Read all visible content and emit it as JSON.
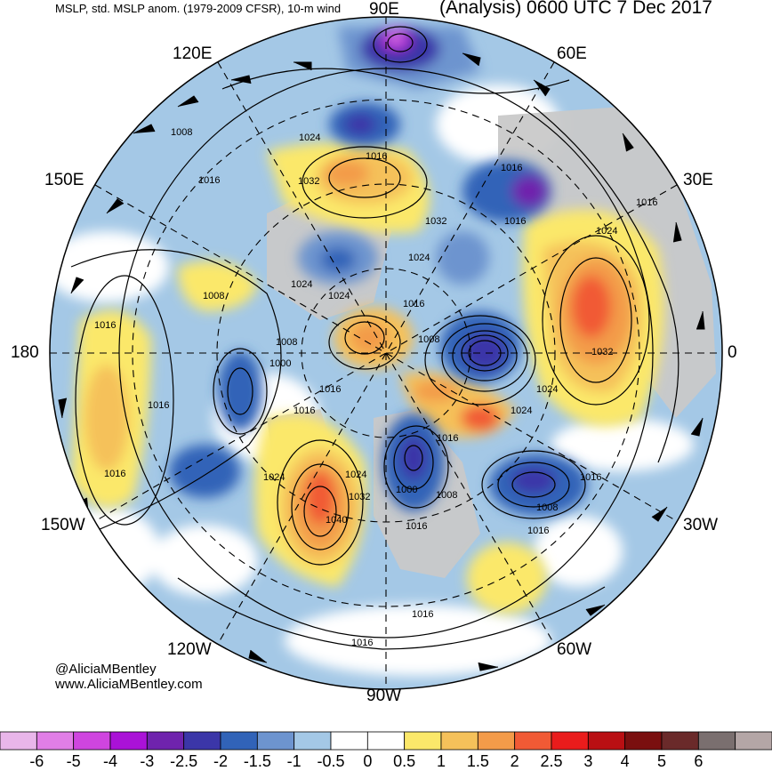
{
  "header": {
    "left_title": "MSLP, std. MSLP anom. (1979-2009 CFSR), 10-m wind",
    "right_title": "(Analysis) 0600 UTC 7 Dec 2017"
  },
  "longitude_labels": {
    "e90": "90E",
    "e60": "60E",
    "e30": "30E",
    "zero": "0",
    "w30": "30W",
    "w60": "60W",
    "w90": "90W",
    "w120": "120W",
    "w150": "150W",
    "deg180": "180",
    "e150": "150E",
    "e120": "120E"
  },
  "credit": {
    "handle": "@AliciaMBentley",
    "website": "www.AliciaMBentley.com"
  },
  "isobar_labels": [
    "1008",
    "1016",
    "1024",
    "1016",
    "1032",
    "1016",
    "1016",
    "1016",
    "1032",
    "1024",
    "1024",
    "1024",
    "1008",
    "1016",
    "1024",
    "1016",
    "1032",
    "1024",
    "1008",
    "1000",
    "1016",
    "1008",
    "1016",
    "1016",
    "1016",
    "1024",
    "1000",
    "1008",
    "1016",
    "1008",
    "1024",
    "1032",
    "1040",
    "1016",
    "1016",
    "1016",
    "1016",
    "1016",
    "1024"
  ],
  "colorbar": {
    "colors": [
      "#e9b6ea",
      "#e17ee6",
      "#cf45df",
      "#aa12d7",
      "#6f23ad",
      "#3b36a8",
      "#3163b8",
      "#6d94cf",
      "#a4c8e6",
      "#ffffff",
      "#ffffff",
      "#fbe86a",
      "#f5c15a",
      "#f39b49",
      "#f15a35",
      "#ea1c1c",
      "#b90f13",
      "#7a0f0f",
      "#6a2a2a",
      "#7a6f6f",
      "#b4a6a6"
    ],
    "tick_labels": [
      "-6",
      "-5",
      "-4",
      "-3",
      "-2.5",
      "-2",
      "-1.5",
      "-1",
      "-0.5",
      "0",
      "0.5",
      "1",
      "1.5",
      "2",
      "2.5",
      "3",
      "4",
      "5",
      "6"
    ]
  }
}
